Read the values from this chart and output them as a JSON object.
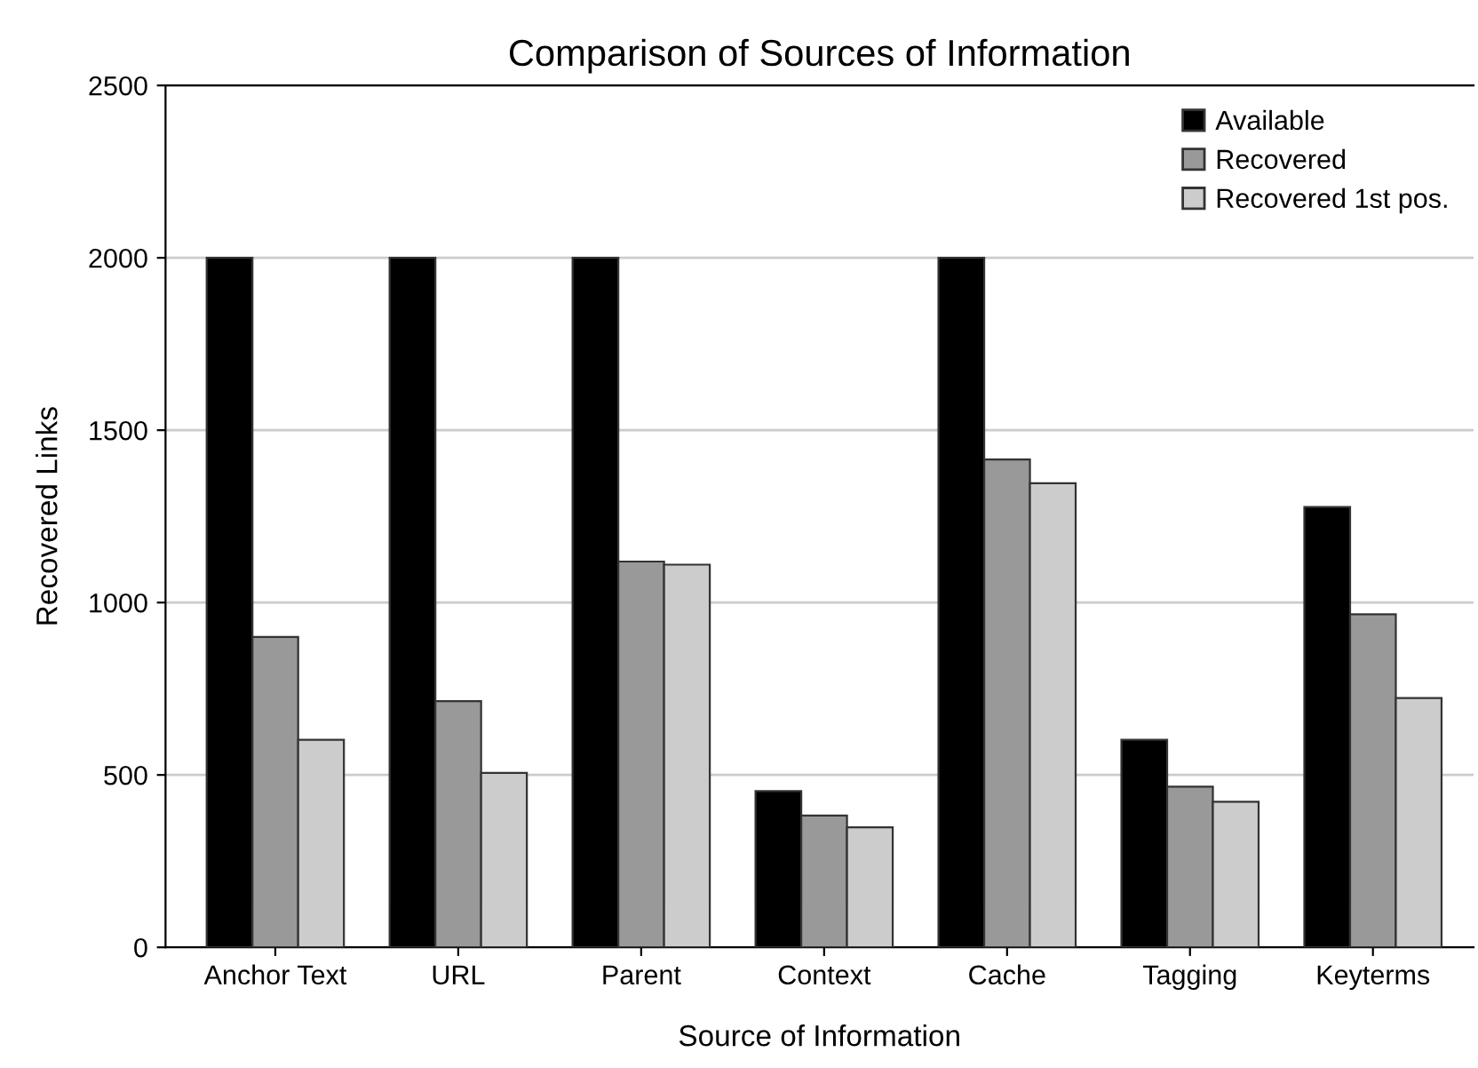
{
  "chart_data": {
    "type": "bar",
    "title": "Comparison of Sources of Information",
    "xlabel": "Source of Information",
    "ylabel": "Recovered Links",
    "categories": [
      "Anchor Text",
      "URL",
      "Parent",
      "Context",
      "Cache",
      "Tagging",
      "Keyterms"
    ],
    "series": [
      {
        "name": "Available",
        "color": "#000000",
        "values": [
          2000,
          2000,
          2000,
          453,
          2000,
          602,
          1277
        ]
      },
      {
        "name": "Recovered",
        "color": "#999999",
        "values": [
          900,
          714,
          1119,
          382,
          1415,
          466,
          966
        ]
      },
      {
        "name": "Recovered 1st pos.",
        "color": "#cccccc",
        "values": [
          602,
          506,
          1110,
          348,
          1346,
          422,
          723
        ]
      }
    ],
    "ylim": [
      0,
      2500
    ],
    "yticks": [
      0,
      500,
      1000,
      1500,
      2000,
      2500
    ],
    "grid": "y",
    "legend": "top right"
  }
}
